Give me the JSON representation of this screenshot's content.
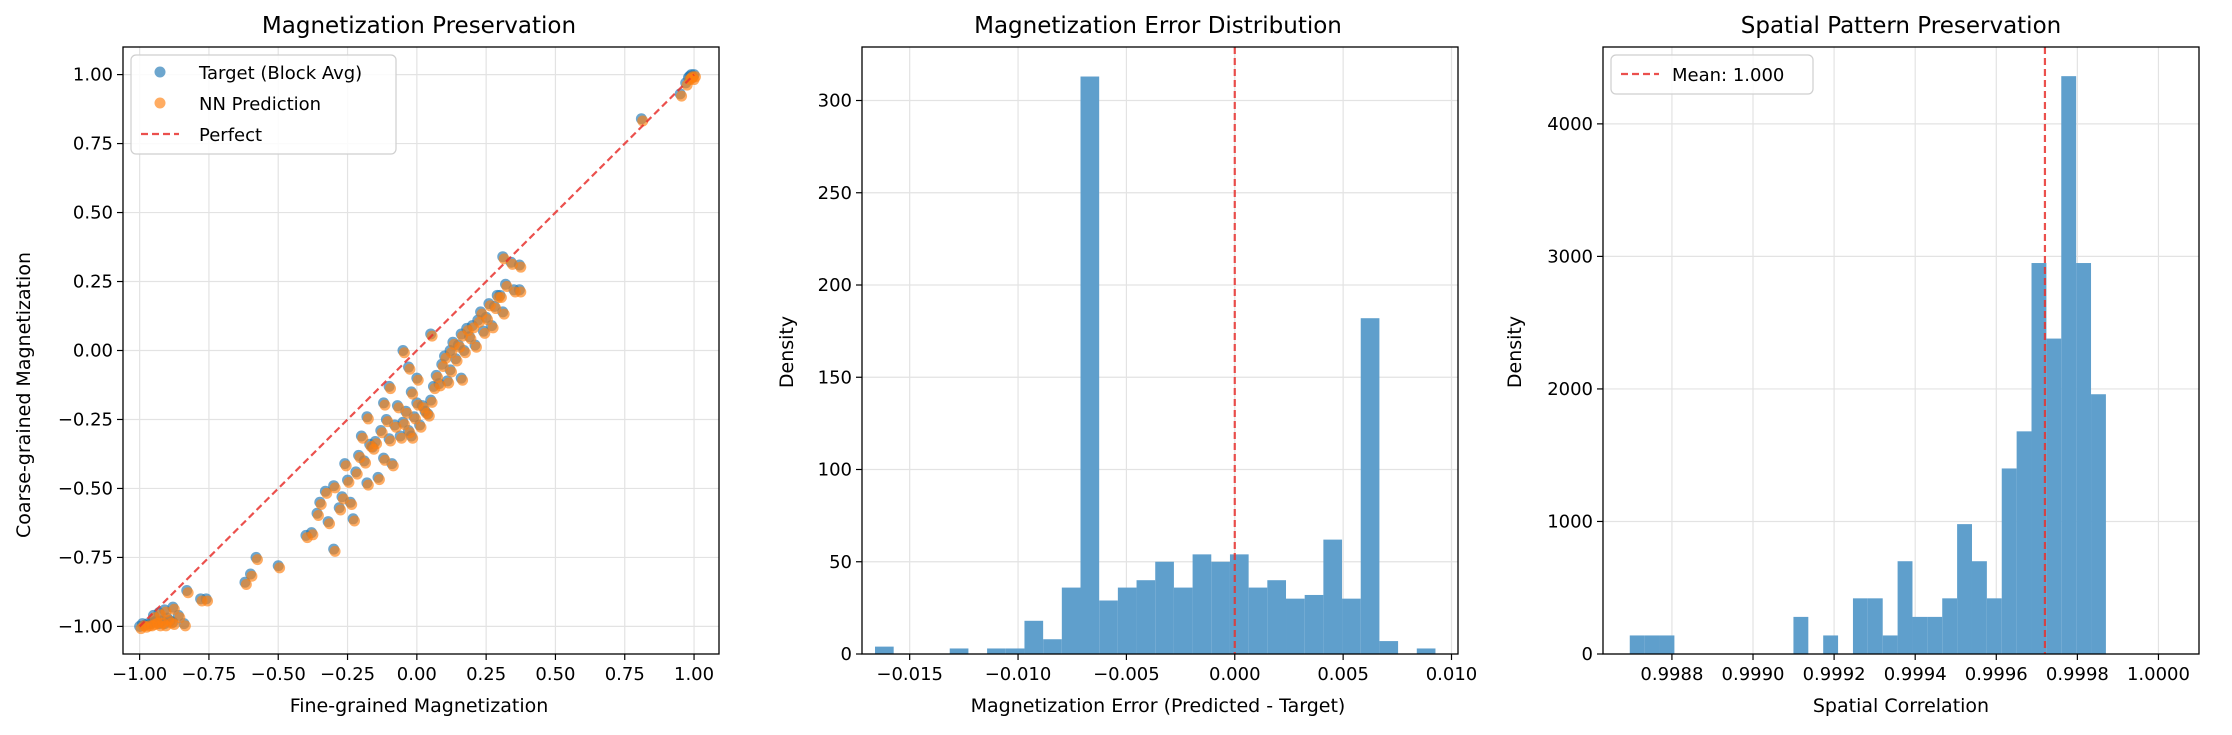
{
  "colors": {
    "blue": "#1f77b4",
    "orange": "#ff7f0e",
    "red": "#e8312e",
    "hist": "#5f9fcc",
    "grid": "#e3e3e3"
  },
  "chart_data": [
    {
      "type": "scatter",
      "title": "Magnetization Preservation",
      "xlabel": "Fine-grained Magnetization",
      "ylabel": "Coarse-grained Magnetization",
      "xlim": [
        -1.06,
        1.09
      ],
      "ylim": [
        -1.1,
        1.1
      ],
      "xticks": [
        -1.0,
        -0.75,
        -0.5,
        -0.25,
        0.0,
        0.25,
        0.5,
        0.75,
        1.0
      ],
      "xtick_labels": [
        "−1.00",
        "−0.75",
        "−0.50",
        "−0.25",
        "0.00",
        "0.25",
        "0.50",
        "0.75",
        "1.00"
      ],
      "yticks": [
        -1.0,
        -0.75,
        -0.5,
        -0.25,
        0.0,
        0.25,
        0.5,
        0.75,
        1.0
      ],
      "ytick_labels": [
        "−1.00",
        "−0.75",
        "−0.50",
        "−0.25",
        "0.00",
        "0.25",
        "0.50",
        "0.75",
        "1.00"
      ],
      "grid": true,
      "legend_position": "top-left",
      "legend": [
        "Target (Block Avg)",
        "NN Prediction",
        "Perfect"
      ],
      "reference_line": {
        "name": "Perfect",
        "x": [
          -1.0,
          1.0
        ],
        "y": [
          -1.0,
          1.0
        ]
      },
      "points": [
        [
          -1.0,
          -1.0
        ],
        [
          -0.99,
          -0.99
        ],
        [
          -0.98,
          -0.995
        ],
        [
          -0.97,
          -0.99
        ],
        [
          -0.96,
          -0.99
        ],
        [
          -0.95,
          -0.985
        ],
        [
          -0.94,
          -0.98
        ],
        [
          -0.93,
          -0.99
        ],
        [
          -0.92,
          -0.98
        ],
        [
          -0.91,
          -0.99
        ],
        [
          -0.9,
          -0.97
        ],
        [
          -0.89,
          -0.98
        ],
        [
          -0.88,
          -0.985
        ],
        [
          -0.95,
          -0.96
        ],
        [
          -0.93,
          -0.95
        ],
        [
          -0.91,
          -0.94
        ],
        [
          -0.86,
          -0.96
        ],
        [
          -0.84,
          -0.99
        ],
        [
          -0.88,
          -0.93
        ],
        [
          -0.83,
          -0.87
        ],
        [
          -0.78,
          -0.9
        ],
        [
          -0.76,
          -0.9
        ],
        [
          -0.62,
          -0.84
        ],
        [
          -0.6,
          -0.81
        ],
        [
          -0.58,
          -0.75
        ],
        [
          -0.5,
          -0.78
        ],
        [
          -0.4,
          -0.67
        ],
        [
          -0.38,
          -0.66
        ],
        [
          -0.36,
          -0.59
        ],
        [
          -0.35,
          -0.55
        ],
        [
          -0.33,
          -0.51
        ],
        [
          -0.32,
          -0.62
        ],
        [
          -0.3,
          -0.49
        ],
        [
          -0.3,
          -0.72
        ],
        [
          -0.28,
          -0.57
        ],
        [
          -0.27,
          -0.53
        ],
        [
          -0.26,
          -0.41
        ],
        [
          -0.25,
          -0.47
        ],
        [
          -0.24,
          -0.55
        ],
        [
          -0.23,
          -0.61
        ],
        [
          -0.22,
          -0.44
        ],
        [
          -0.21,
          -0.38
        ],
        [
          -0.2,
          -0.31
        ],
        [
          -0.19,
          -0.4
        ],
        [
          -0.18,
          -0.48
        ],
        [
          -0.17,
          -0.34
        ],
        [
          -0.16,
          -0.35
        ],
        [
          -0.15,
          -0.33
        ],
        [
          -0.14,
          -0.46
        ],
        [
          -0.13,
          -0.29
        ],
        [
          -0.12,
          -0.39
        ],
        [
          -0.11,
          -0.25
        ],
        [
          -0.1,
          -0.32
        ],
        [
          -0.09,
          -0.41
        ],
        [
          -0.08,
          -0.27
        ],
        [
          -0.07,
          -0.2
        ],
        [
          -0.06,
          -0.31
        ],
        [
          -0.05,
          -0.26
        ],
        [
          -0.04,
          -0.22
        ],
        [
          -0.03,
          -0.29
        ],
        [
          -0.02,
          -0.15
        ],
        [
          -0.01,
          -0.24
        ],
        [
          0.0,
          -0.19
        ],
        [
          0.01,
          -0.27
        ],
        [
          0.02,
          -0.2
        ],
        [
          0.03,
          -0.22
        ],
        [
          0.04,
          -0.23
        ],
        [
          0.05,
          -0.18
        ],
        [
          0.06,
          -0.13
        ],
        [
          0.07,
          -0.09
        ],
        [
          0.08,
          -0.12
        ],
        [
          0.09,
          -0.05
        ],
        [
          0.1,
          -0.02
        ],
        [
          0.11,
          -0.11
        ],
        [
          0.12,
          0.0
        ],
        [
          0.13,
          0.03
        ],
        [
          0.14,
          -0.03
        ],
        [
          0.15,
          0.02
        ],
        [
          0.16,
          0.06
        ],
        [
          0.17,
          0.0
        ],
        [
          0.18,
          0.08
        ],
        [
          0.19,
          0.05
        ],
        [
          0.2,
          0.09
        ],
        [
          0.21,
          0.02
        ],
        [
          0.22,
          0.11
        ],
        [
          0.23,
          0.14
        ],
        [
          0.24,
          0.07
        ],
        [
          0.25,
          0.12
        ],
        [
          0.26,
          0.17
        ],
        [
          0.27,
          0.09
        ],
        [
          0.28,
          0.16
        ],
        [
          0.29,
          0.2
        ],
        [
          0.3,
          0.2
        ],
        [
          0.31,
          0.14
        ],
        [
          0.32,
          0.24
        ],
        [
          0.35,
          0.22
        ],
        [
          0.37,
          0.22
        ],
        [
          0.31,
          0.34
        ],
        [
          0.34,
          0.32
        ],
        [
          0.37,
          0.31
        ],
        [
          -0.05,
          0.0
        ],
        [
          -0.03,
          -0.06
        ],
        [
          0.05,
          0.06
        ],
        [
          -0.1,
          -0.13
        ],
        [
          0.0,
          -0.1
        ],
        [
          -0.18,
          -0.24
        ],
        [
          0.12,
          -0.07
        ],
        [
          -0.02,
          -0.31
        ],
        [
          0.16,
          -0.1
        ],
        [
          -0.12,
          -0.19
        ],
        [
          0.81,
          0.84
        ],
        [
          0.95,
          0.93
        ],
        [
          0.97,
          0.97
        ],
        [
          0.98,
          0.99
        ],
        [
          0.99,
          1.0
        ],
        [
          1.0,
          1.0
        ],
        [
          0.995,
          0.99
        ],
        [
          0.985,
          0.995
        ]
      ],
      "prediction_offset": [
        0.005,
        -0.008
      ]
    },
    {
      "type": "bar",
      "title": "Magnetization Error Distribution",
      "xlabel": "Magnetization Error (Predicted - Target)",
      "ylabel": "Density",
      "xlim": [
        -0.0172,
        0.0103
      ],
      "ylim": [
        0,
        329
      ],
      "xticks": [
        -0.015,
        -0.01,
        -0.005,
        0.0,
        0.005,
        0.01
      ],
      "xtick_labels": [
        "−0.015",
        "−0.010",
        "−0.005",
        "0.000",
        "0.005",
        "0.010"
      ],
      "yticks": [
        0,
        50,
        100,
        150,
        200,
        250,
        300
      ],
      "ytick_labels": [
        "0",
        "50",
        "100",
        "150",
        "200",
        "250",
        "300"
      ],
      "grid": true,
      "bin_start": -0.0166,
      "bin_width": 0.000862,
      "values": [
        4,
        0,
        0,
        0,
        3,
        0,
        3,
        3,
        18,
        8,
        36,
        313,
        29,
        36,
        40,
        50,
        36,
        54,
        50,
        54,
        36,
        40,
        30,
        32,
        62,
        30,
        182,
        7,
        0,
        3
      ],
      "reference_line": {
        "x": 0.0
      }
    },
    {
      "type": "bar",
      "title": "Spatial Pattern Preservation",
      "xlabel": "Spatial Correlation",
      "ylabel": "Density",
      "xlim": [
        0.99863,
        1.0001
      ],
      "ylim": [
        0,
        4580
      ],
      "xticks": [
        0.9988,
        0.999,
        0.9992,
        0.9994,
        0.9996,
        0.9998,
        1.0
      ],
      "xtick_labels": [
        "0.9988",
        "0.9990",
        "0.9992",
        "0.9994",
        "0.9996",
        "0.9998",
        "1.0000"
      ],
      "yticks": [
        0,
        1000,
        2000,
        3000,
        4000
      ],
      "ytick_labels": [
        "0",
        "1000",
        "2000",
        "3000",
        "4000"
      ],
      "grid": true,
      "legend_position": "top-left",
      "legend": [
        "Mean: 1.000"
      ],
      "bin_start": 0.998696,
      "bin_width": 3.67e-05,
      "values": [
        140,
        140,
        140,
        0,
        0,
        0,
        0,
        0,
        0,
        0,
        0,
        280,
        0,
        140,
        0,
        420,
        420,
        140,
        700,
        280,
        280,
        420,
        980,
        700,
        420,
        1400,
        1680,
        2950,
        2380,
        4360,
        2950,
        1960
      ],
      "reference_line": {
        "x": 0.99972
      }
    }
  ]
}
